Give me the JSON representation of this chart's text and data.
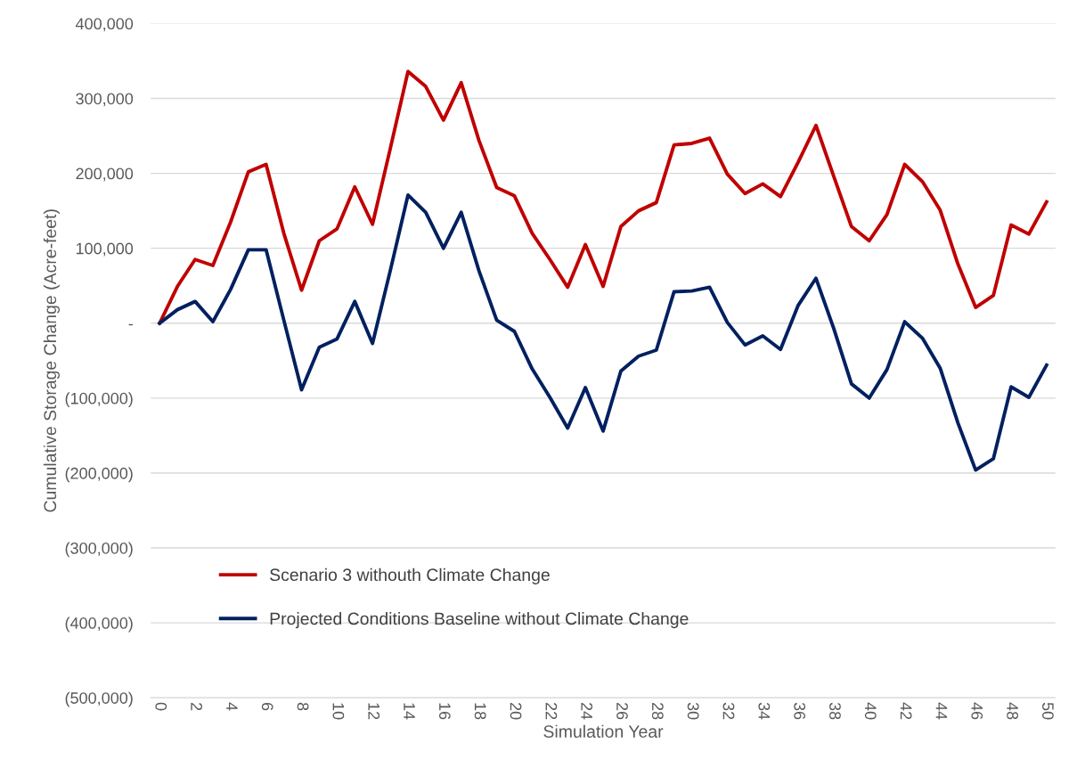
{
  "chart_data": {
    "type": "line",
    "xlabel": "Simulation Year",
    "ylabel": "Cumulative Storage Change (Acre-feet)",
    "categories": [
      "0",
      null,
      "2",
      null,
      "4",
      null,
      "6",
      null,
      "8",
      null,
      "10",
      null,
      "12",
      null,
      "14",
      null,
      "16",
      null,
      "18",
      null,
      "20",
      null,
      "22",
      null,
      "24",
      null,
      "26",
      null,
      "28",
      null,
      "30",
      null,
      "32",
      null,
      "34",
      null,
      "36",
      null,
      "38",
      null,
      "40",
      null,
      "42",
      null,
      "44",
      null,
      "46",
      null,
      "48",
      null,
      "50"
    ],
    "series": [
      {
        "name": "Scenario 3 withouth Climate Change",
        "color": "#c00000",
        "values": [
          0,
          49000,
          85000,
          77000,
          135000,
          202000,
          212000,
          120000,
          44000,
          110000,
          126000,
          182000,
          132000,
          233000,
          336000,
          316000,
          271000,
          321000,
          244000,
          181000,
          170000,
          120000,
          85000,
          48000,
          105000,
          49000,
          129000,
          150000,
          161000,
          238000,
          240000,
          247000,
          199000,
          173000,
          186000,
          169000,
          215000,
          264000,
          196000,
          129000,
          110000,
          145000,
          212000,
          189000,
          151000,
          79000,
          21000,
          37000,
          131000,
          119000,
          162000
        ]
      },
      {
        "name": "Projected Conditions Baseline without Climate Change",
        "color": "#002060",
        "values": [
          0,
          18000,
          29000,
          2000,
          45000,
          98000,
          98000,
          4000,
          -89000,
          -32000,
          -21000,
          29000,
          -27000,
          70000,
          171000,
          148000,
          100000,
          148000,
          70000,
          4000,
          -11000,
          -61000,
          -99000,
          -140000,
          -86000,
          -144000,
          -64000,
          -44000,
          -36000,
          42000,
          43000,
          48000,
          1000,
          -29000,
          -17000,
          -35000,
          24000,
          60000,
          -7000,
          -81000,
          -100000,
          -62000,
          2000,
          -20000,
          -60000,
          -133000,
          -196000,
          -181000,
          -85000,
          -99000,
          -56000
        ]
      }
    ],
    "ylim": [
      -500000,
      400000
    ],
    "yticks": [
      {
        "value": -500000,
        "label": "(500,000)"
      },
      {
        "value": -400000,
        "label": "(400,000)"
      },
      {
        "value": -300000,
        "label": "(300,000)"
      },
      {
        "value": -200000,
        "label": "(200,000)"
      },
      {
        "value": -100000,
        "label": "(100,000)"
      },
      {
        "value": 0,
        "label": "-"
      },
      {
        "value": 100000,
        "label": "100,000"
      },
      {
        "value": 200000,
        "label": "200,000"
      },
      {
        "value": 300000,
        "label": "300,000"
      },
      {
        "value": 400000,
        "label": "400,000"
      }
    ],
    "grid": "y",
    "legend": "bottom left",
    "marker": "none",
    "line_style": "solid"
  }
}
